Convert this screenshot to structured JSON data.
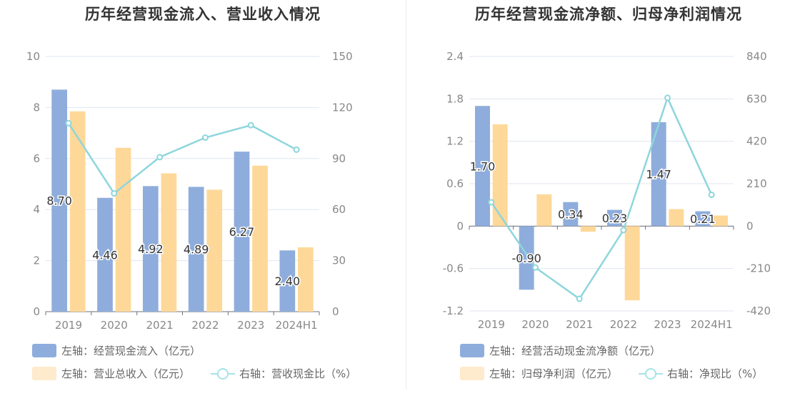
{
  "colors": {
    "bar_primary": "#8eaddc",
    "bar_secondary": "#fed899",
    "line": "#8dd6dc",
    "legend_secondary": "#feeacc",
    "legend_line": "#a6e3e9"
  },
  "chart_data": [
    {
      "type": "bar",
      "title": "历年经营现金流入、营业收入情况",
      "categories": [
        "2019",
        "2020",
        "2021",
        "2022",
        "2023",
        "2024H1"
      ],
      "left_axis": {
        "ticks": [
          "0",
          "2",
          "4",
          "6",
          "8",
          "10"
        ],
        "ylim": [
          0,
          10
        ]
      },
      "right_axis": {
        "ticks": [
          "0",
          "30",
          "60",
          "90",
          "120",
          "150"
        ],
        "ylim": [
          0,
          150
        ]
      },
      "series": [
        {
          "name": "左轴：经营现金流入（亿元）",
          "type": "bar",
          "axis": "left",
          "values": [
            8.7,
            4.46,
            4.92,
            4.89,
            6.27,
            2.4
          ],
          "labels": [
            "8.70",
            "4.46",
            "4.92",
            "4.89",
            "6.27",
            "2.40"
          ]
        },
        {
          "name": "左轴：营业总收入（亿元）",
          "type": "bar",
          "axis": "left",
          "values": [
            7.85,
            6.42,
            5.42,
            4.78,
            5.72,
            2.52
          ]
        },
        {
          "name": "右轴：营收现金比（%）",
          "type": "line",
          "axis": "right",
          "values": [
            110.8,
            69.5,
            90.8,
            102.3,
            109.6,
            95.2
          ]
        }
      ],
      "grid": true
    },
    {
      "type": "bar",
      "title": "历年经营现金流净额、归母净利润情况",
      "categories": [
        "2019",
        "2020",
        "2021",
        "2022",
        "2023",
        "2024H1"
      ],
      "left_axis": {
        "ticks": [
          "-1.2",
          "-0.6",
          "0",
          "0.6",
          "1.2",
          "1.8",
          "2.4"
        ],
        "ylim": [
          -1.2,
          2.4
        ]
      },
      "right_axis": {
        "ticks": [
          "-420",
          "-210",
          "0",
          "210",
          "420",
          "630",
          "840"
        ],
        "ylim": [
          -420,
          840
        ]
      },
      "series": [
        {
          "name": "左轴：经营活动现金流净额（亿元）",
          "type": "bar",
          "axis": "left",
          "values": [
            1.7,
            -0.9,
            0.34,
            0.23,
            1.47,
            0.21
          ],
          "labels": [
            "1.70",
            "-0.90",
            "0.34",
            "0.23",
            "1.47",
            "0.21"
          ]
        },
        {
          "name": "左轴：归母净利润（亿元）",
          "type": "bar",
          "axis": "left",
          "values": [
            1.44,
            0.45,
            -0.08,
            -1.05,
            0.24,
            0.15
          ]
        },
        {
          "name": "右轴：净现比（%）",
          "type": "line",
          "axis": "right",
          "values": [
            118,
            -205,
            -360,
            -20,
            635,
            155
          ]
        }
      ],
      "grid": true
    }
  ]
}
